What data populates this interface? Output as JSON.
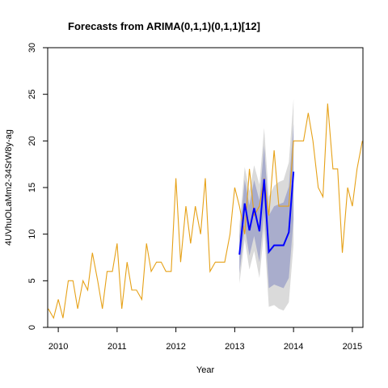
{
  "chart_data": {
    "type": "line",
    "title": "Forecasts from ARIMA(0,1,1)(0,1,1)[12]",
    "xlabel": "Year",
    "ylabel": "4UVhuOLaMm2-34SrW8y-ag",
    "xlim": [
      2009.82,
      2015.18
    ],
    "ylim": [
      0,
      30
    ],
    "x_ticks": [
      2010,
      2011,
      2012,
      2013,
      2014,
      2015
    ],
    "y_ticks": [
      0,
      5,
      10,
      15,
      20,
      25,
      30
    ],
    "grid": false,
    "legend": "none",
    "series": [
      {
        "role": "history",
        "color": "#E6A117",
        "x": [
          2009.83,
          2009.92,
          2010.0,
          2010.08,
          2010.17,
          2010.25,
          2010.33,
          2010.42,
          2010.5,
          2010.58,
          2010.67,
          2010.75,
          2010.83,
          2010.92,
          2011.0,
          2011.08,
          2011.17,
          2011.25,
          2011.33,
          2011.42,
          2011.5,
          2011.58,
          2011.67,
          2011.75,
          2011.83,
          2011.92,
          2012.0,
          2012.08,
          2012.17,
          2012.25,
          2012.33,
          2012.42,
          2012.5,
          2012.58,
          2012.67,
          2012.75,
          2012.83,
          2012.92,
          2013.0,
          2013.08,
          2013.17,
          2013.25,
          2013.33,
          2013.42,
          2013.5,
          2013.58,
          2013.67,
          2013.75,
          2013.83,
          2013.92,
          2014.0,
          2014.08,
          2014.17,
          2014.25,
          2014.33,
          2014.42,
          2014.5,
          2014.58,
          2014.67,
          2014.75,
          2014.83,
          2014.92,
          2015.0,
          2015.08,
          2015.17
        ],
        "values": [
          2,
          1,
          3,
          1,
          5,
          5,
          2,
          5,
          4,
          8,
          5,
          2,
          6,
          6,
          9,
          2,
          7,
          4,
          4,
          3,
          9,
          6,
          7,
          7,
          6,
          6,
          16,
          7,
          13,
          9,
          13,
          10,
          16,
          6,
          7,
          7,
          7,
          10,
          15,
          13,
          10,
          17,
          12,
          13,
          16,
          12,
          19,
          13,
          13,
          13,
          20,
          20,
          20,
          23,
          20,
          15,
          14,
          24,
          17,
          17,
          8,
          15,
          13,
          17,
          20
        ]
      },
      {
        "role": "forecast",
        "color": "#0000FF",
        "x": [
          2013.08,
          2013.17,
          2013.25,
          2013.33,
          2013.42,
          2013.5,
          2013.58,
          2013.67,
          2013.75,
          2013.83,
          2013.92,
          2014.0
        ],
        "values": [
          7.8,
          13.3,
          10.4,
          12.8,
          10.3,
          15.9,
          8.1,
          8.8,
          8.8,
          8.8,
          10.2,
          16.7
        ],
        "lower_80": [
          5.8,
          10.8,
          7.7,
          9.8,
          7.0,
          12.3,
          4.2,
          4.6,
          4.4,
          4.2,
          5.3,
          11.6
        ],
        "upper_80": [
          9.8,
          15.8,
          13.1,
          15.8,
          13.6,
          19.5,
          12.0,
          13.0,
          13.2,
          13.4,
          15.1,
          21.8
        ],
        "lower_95": [
          4.7,
          9.4,
          6.2,
          8.2,
          5.3,
          10.4,
          2.2,
          2.4,
          2.0,
          1.8,
          2.7,
          8.9
        ],
        "upper_95": [
          10.9,
          17.2,
          14.6,
          17.4,
          15.3,
          21.4,
          14.0,
          15.2,
          15.6,
          15.8,
          17.7,
          24.5
        ],
        "band_80_color": "#A9ADCC",
        "band_95_color": "#DADADA"
      }
    ]
  }
}
